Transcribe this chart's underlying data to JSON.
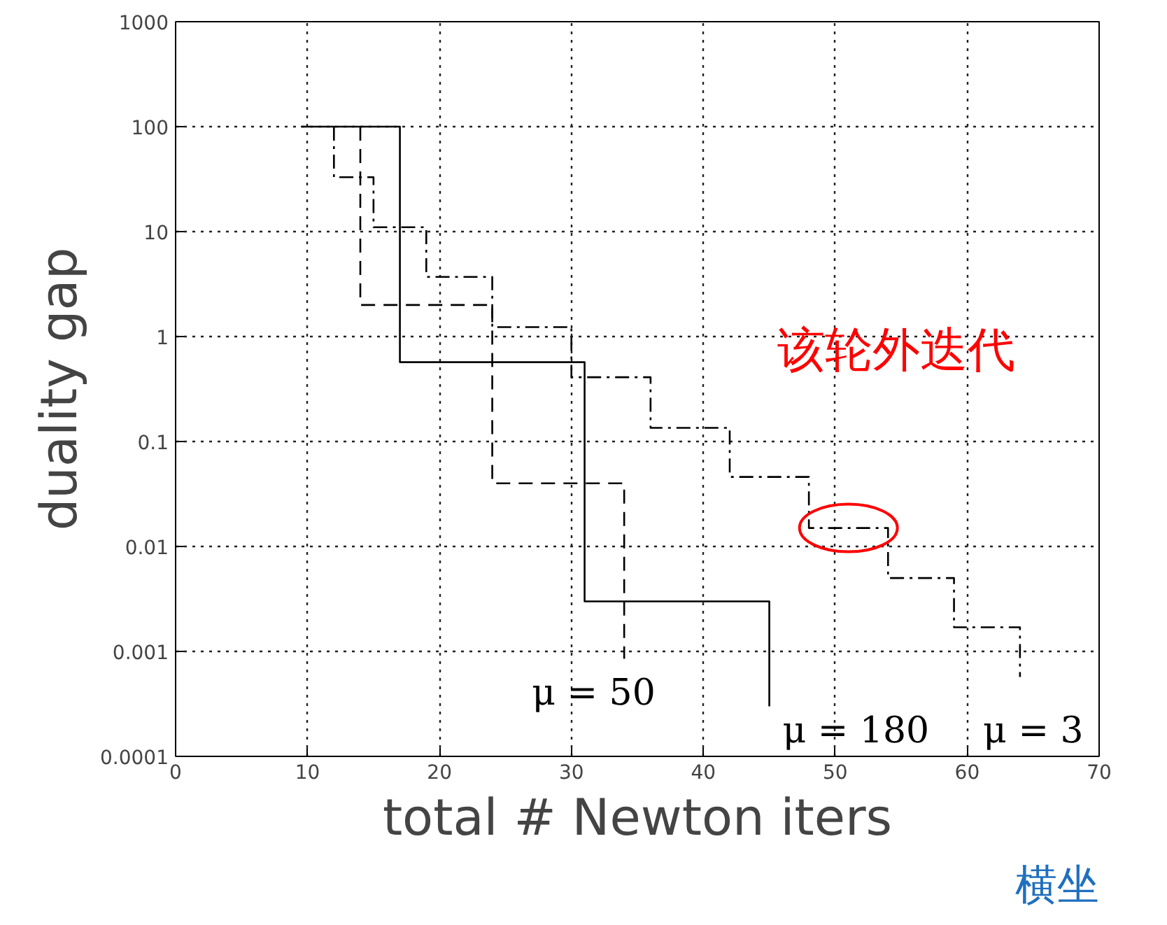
{
  "chart_data": {
    "type": "step",
    "xlabel": "total # Newton iters",
    "ylabel": "duality gap",
    "xlim": [
      0,
      70
    ],
    "xticks": [
      0,
      10,
      20,
      30,
      40,
      50,
      60,
      70
    ],
    "ylim": [
      0.0001,
      1000
    ],
    "yticks": [
      0.0001,
      0.001,
      0.01,
      0.1,
      1,
      10,
      100,
      1000
    ],
    "log": "y",
    "grid": true,
    "marker": "none",
    "series": [
      {
        "color": "#000000",
        "line_style": "solid",
        "x": [
          9.5,
          17,
          31,
          45,
          45
        ],
        "values": [
          100,
          0.57,
          0.003,
          0.0003,
          0.0003
        ]
      },
      {
        "color": "#000000",
        "line_style": "dashed",
        "x": [
          14,
          14,
          24,
          34,
          34
        ],
        "values": [
          100,
          2,
          0.04,
          0.00085,
          0.00085
        ]
      },
      {
        "color": "#000000",
        "line_style": "dashdot",
        "x": [
          12,
          12,
          15,
          19,
          24,
          30,
          36,
          42,
          48,
          54,
          59,
          64,
          64
        ],
        "values": [
          100,
          33,
          11,
          3.7,
          1.23,
          0.41,
          0.135,
          0.046,
          0.015,
          0.005,
          0.0017,
          0.00057,
          0.00057
        ]
      }
    ],
    "annotations": [
      "μ = 50",
      "μ = 180",
      "μ = 3",
      "该轮外迭代",
      "横坐"
    ]
  }
}
